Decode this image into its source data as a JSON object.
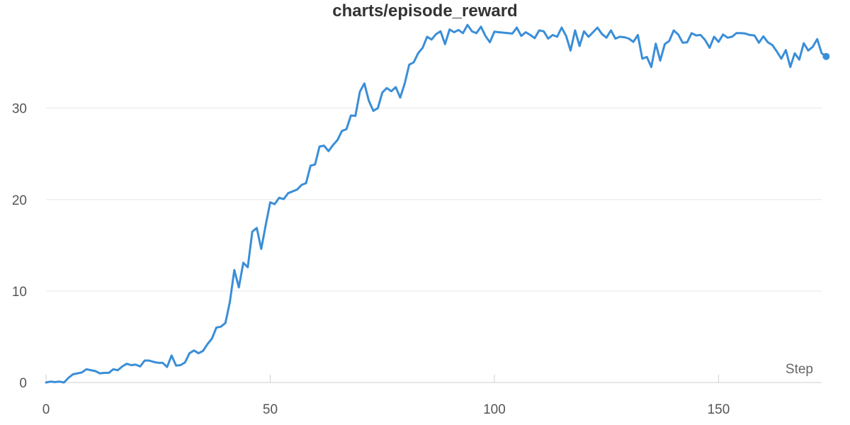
{
  "chart_data": {
    "type": "line",
    "title": "charts/episode_reward",
    "xlabel": "Step",
    "ylabel": "",
    "xlim": [
      0,
      173
    ],
    "ylim": [
      0,
      39.5
    ],
    "xticks": [
      0,
      50,
      100,
      150
    ],
    "yticks": [
      0,
      10,
      20,
      30
    ],
    "grid": true,
    "line_color": "#3a8ed8",
    "series": [
      {
        "values": [
          0,
          0.1,
          0.05,
          0.1,
          0.0,
          0.5,
          0.9,
          1.0,
          1.1,
          1.45,
          1.35,
          1.25,
          1.0,
          1.05,
          1.05,
          1.45,
          1.35,
          1.75,
          2.05,
          1.9,
          1.95,
          1.75,
          2.4,
          2.4,
          2.25,
          2.15,
          2.15,
          1.7,
          2.95,
          1.85,
          1.9,
          2.2,
          3.2,
          3.5,
          3.2,
          3.45,
          4.2,
          4.8,
          6.0,
          6.1,
          6.5,
          8.8,
          12.3,
          10.4,
          13.1,
          12.6,
          16.5,
          16.9,
          14.6,
          17.2,
          19.7,
          19.5,
          20.2,
          20.05,
          20.7,
          20.9,
          21.1,
          21.6,
          21.8,
          23.7,
          23.85,
          25.8,
          25.9,
          25.3,
          25.95,
          26.5,
          27.5,
          27.7,
          29.2,
          29.15,
          31.8,
          32.7,
          30.8,
          29.7,
          30.0,
          31.7,
          32.2,
          31.85,
          32.3,
          31.15,
          32.7,
          34.75,
          35.0,
          36.0,
          36.6,
          37.8,
          37.5,
          38.1,
          38.4,
          37.0,
          38.6,
          38.3,
          38.55,
          38.2,
          39.1,
          38.4,
          38.2,
          38.9,
          37.9,
          37.2,
          38.35,
          38.3,
          38.25,
          38.2,
          38.15,
          38.8,
          37.9,
          38.3,
          38.0,
          37.65,
          38.5,
          38.4,
          37.6,
          38.0,
          37.8,
          38.8,
          37.9,
          36.3,
          38.5,
          36.8,
          38.4,
          37.8,
          38.3,
          38.8,
          38.1,
          37.7,
          38.5,
          37.6,
          37.8,
          37.75,
          37.6,
          37.25,
          38.0,
          35.4,
          35.6,
          34.5,
          37.05,
          35.2,
          37.0,
          37.35,
          38.5,
          38.05,
          37.15,
          37.2,
          38.2,
          37.95,
          38.0,
          37.45,
          36.6,
          37.8,
          37.25,
          38.05,
          37.7,
          37.8,
          38.2,
          38.2,
          38.15,
          38.0,
          37.95,
          37.15,
          37.85,
          37.2,
          36.9,
          36.2,
          35.4,
          36.35,
          34.5,
          36.0,
          35.3,
          37.1,
          36.3,
          36.7,
          37.55,
          36.0,
          35.65
        ]
      }
    ]
  }
}
